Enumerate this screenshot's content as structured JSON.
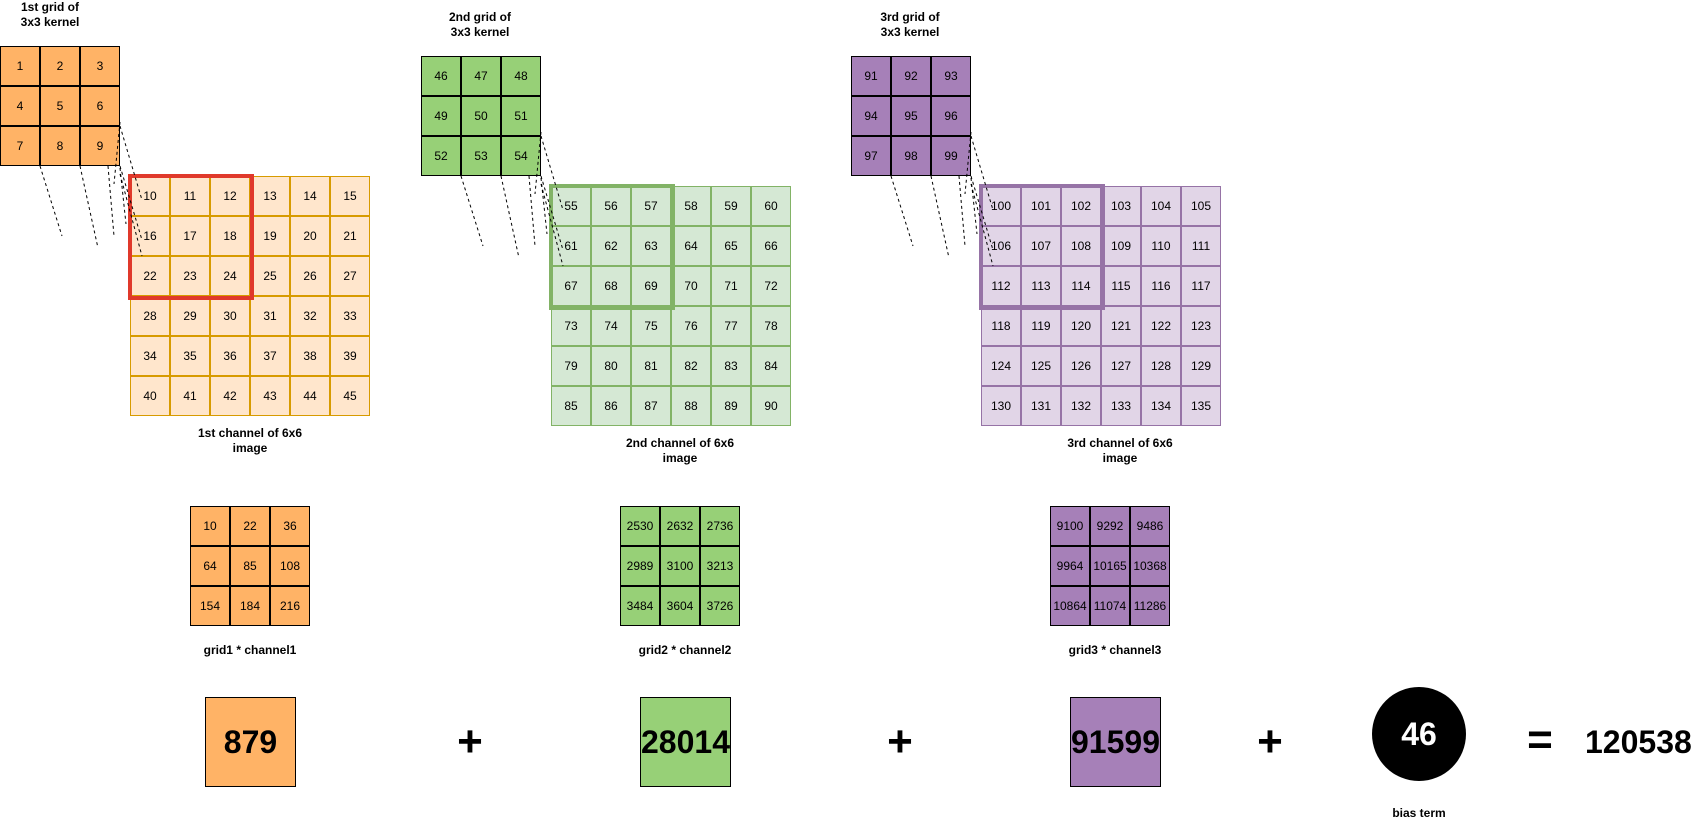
{
  "panels": [
    {
      "kernel_label": "1st grid of 3x3 kernel",
      "kernel": [
        "1",
        "2",
        "3",
        "4",
        "5",
        "6",
        "7",
        "8",
        "9"
      ],
      "channel": [
        "10",
        "11",
        "12",
        "13",
        "14",
        "15",
        "16",
        "17",
        "18",
        "19",
        "20",
        "21",
        "22",
        "23",
        "24",
        "25",
        "26",
        "27",
        "28",
        "29",
        "30",
        "31",
        "32",
        "33",
        "34",
        "35",
        "36",
        "37",
        "38",
        "39",
        "40",
        "41",
        "42",
        "43",
        "44",
        "45"
      ],
      "channel_label": "1st channel of 6x6 image",
      "product": [
        "10",
        "22",
        "36",
        "64",
        "85",
        "108",
        "154",
        "184",
        "216"
      ],
      "product_label": "grid1 * channel1",
      "sum": "879",
      "color": "#ffb366",
      "highlight_color": "#e0392b"
    },
    {
      "kernel_label": "2nd grid of 3x3 kernel",
      "kernel": [
        "46",
        "47",
        "48",
        "49",
        "50",
        "51",
        "52",
        "53",
        "54"
      ],
      "channel": [
        "55",
        "56",
        "57",
        "58",
        "59",
        "60",
        "61",
        "62",
        "63",
        "64",
        "65",
        "66",
        "67",
        "68",
        "69",
        "70",
        "71",
        "72",
        "73",
        "74",
        "75",
        "76",
        "77",
        "78",
        "79",
        "80",
        "81",
        "82",
        "83",
        "84",
        "85",
        "86",
        "87",
        "88",
        "89",
        "90"
      ],
      "channel_label": "2nd channel of 6x6 image",
      "product": [
        "2530",
        "2632",
        "2736",
        "2989",
        "3100",
        "3213",
        "3484",
        "3604",
        "3726"
      ],
      "product_label": "grid2 * channel2",
      "sum": "28014",
      "color": "#97d077",
      "highlight_color": "#82b366"
    },
    {
      "kernel_label": "3rd grid of 3x3 kernel",
      "kernel": [
        "91",
        "92",
        "93",
        "94",
        "95",
        "96",
        "97",
        "98",
        "99"
      ],
      "channel": [
        "100",
        "101",
        "102",
        "103",
        "104",
        "105",
        "106",
        "107",
        "108",
        "109",
        "110",
        "111",
        "112",
        "113",
        "114",
        "115",
        "116",
        "117",
        "118",
        "119",
        "120",
        "121",
        "122",
        "123",
        "124",
        "125",
        "126",
        "127",
        "128",
        "129",
        "130",
        "131",
        "132",
        "133",
        "134",
        "135"
      ],
      "channel_label": "3rd channel of 6x6 image",
      "product": [
        "9100",
        "9292",
        "9486",
        "9964",
        "10165",
        "10368",
        "10864",
        "11074",
        "11286"
      ],
      "product_label": "grid3 * channel3",
      "sum": "91599",
      "color": "#a680b8",
      "highlight_color": "#9673a6"
    }
  ],
  "operators": {
    "plus": "+",
    "equals": "="
  },
  "bias": {
    "value": "46",
    "label": "bias term"
  },
  "result": "120538"
}
